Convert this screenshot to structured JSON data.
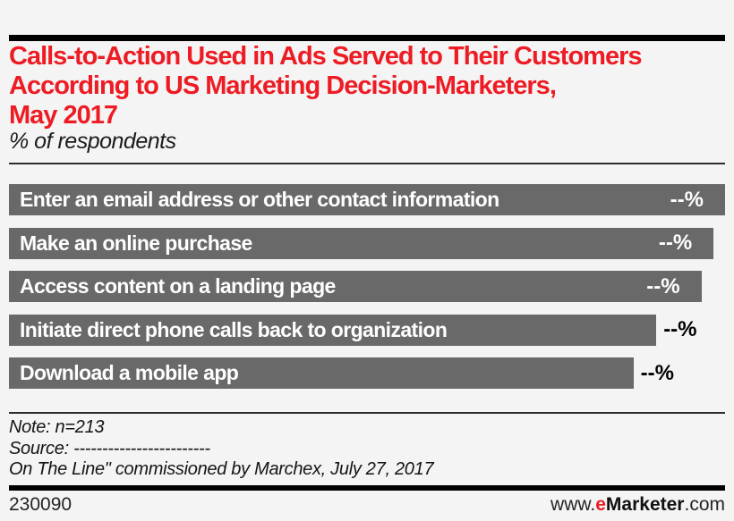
{
  "page": {
    "background_color": "#f4f4f4",
    "accent_red": "#ED1C24",
    "rule_color": "#000000"
  },
  "header": {
    "title_lines": [
      "Calls-to-Action Used in Ads Served to Their Customers",
      "According to US Marketing Decision-Marketers,",
      "May 2017"
    ],
    "subtitle": "% of respondents"
  },
  "chart_data": {
    "type": "bar",
    "orientation": "horizontal",
    "title": "Calls-to-Action Used in Ads Served to Their Customers According to US Marketing Decision-Marketers, May 2017",
    "unit_label": "% of respondents",
    "categories": [
      "Enter an email address or other contact information",
      "Make an online purchase",
      "Access content on a landing page",
      "Initiate direct phone calls back to organization",
      "Download a mobile app"
    ],
    "values": [
      null,
      null,
      null,
      null,
      null
    ],
    "value_labels": [
      "--%",
      "--%",
      "--%",
      "--%",
      "--%"
    ],
    "relative_widths_pct": [
      100,
      98.4,
      96.7,
      90.4,
      87.2
    ],
    "value_label_position": [
      "inside",
      "inside",
      "inside",
      "outside",
      "outside"
    ],
    "bar_color": "#696969",
    "bar_label_color": "#ffffff",
    "inside_value_color": "#ffffff",
    "outside_value_color": "#000000",
    "legend": false,
    "grid": false
  },
  "notes": {
    "note_line": "Note: n=213",
    "source_line": "Source: ------------------------",
    "source_line2": "On The Line\" commissioned by Marchex, July 27, 2017"
  },
  "footer": {
    "chart_id": "230090",
    "site_prefix": "www.",
    "site_brand_accent": "e",
    "site_brand_rest": "Marketer",
    "site_suffix": ".com"
  }
}
